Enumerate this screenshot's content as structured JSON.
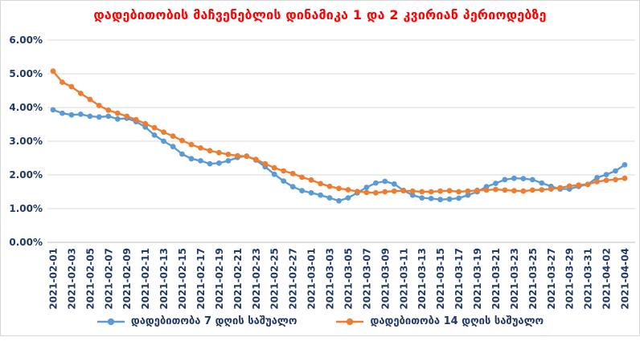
{
  "chart_data": {
    "type": "line",
    "title": "დადებითობის მაჩვენებლის დინამიკა 1 და 2 კვირიან პერიოდებზე",
    "title_color": "#FF0000",
    "axis_text_color": "#1F3864",
    "gridline_color": "#D9D9D9",
    "grid": true,
    "legend_position": "bottom",
    "ylim": [
      0,
      6
    ],
    "y_tick_labels": [
      "0.00%",
      "1.00%",
      "2.00%",
      "3.00%",
      "4.00%",
      "5.00%",
      "6.00%"
    ],
    "x_tick_step": 2,
    "x": [
      "2021-02-01",
      "2021-02-02",
      "2021-02-03",
      "2021-02-04",
      "2021-02-05",
      "2021-02-06",
      "2021-02-07",
      "2021-02-08",
      "2021-02-09",
      "2021-02-10",
      "2021-02-11",
      "2021-02-12",
      "2021-02-13",
      "2021-02-14",
      "2021-02-15",
      "2021-02-16",
      "2021-02-17",
      "2021-02-18",
      "2021-02-19",
      "2021-02-20",
      "2021-02-21",
      "2021-02-22",
      "2021-02-23",
      "2021-02-24",
      "2021-02-25",
      "2021-02-26",
      "2021-02-27",
      "2021-02-28",
      "2021-03-01",
      "2021-03-02",
      "2021-03-03",
      "2021-03-04",
      "2021-03-05",
      "2021-03-06",
      "2021-03-07",
      "2021-03-08",
      "2021-03-09",
      "2021-03-10",
      "2021-03-11",
      "2021-03-12",
      "2021-03-13",
      "2021-03-14",
      "2021-03-15",
      "2021-03-16",
      "2021-03-17",
      "2021-03-18",
      "2021-03-19",
      "2021-03-20",
      "2021-03-21",
      "2021-03-22",
      "2021-03-23",
      "2021-03-24",
      "2021-03-25",
      "2021-03-26",
      "2021-03-27",
      "2021-03-28",
      "2021-03-29",
      "2021-03-30",
      "2021-03-31",
      "2021-04-01",
      "2021-04-02",
      "2021-04-03",
      "2021-04-04"
    ],
    "series": [
      {
        "name": "დადებითობა 7 დღის საშუალო",
        "color": "#5B9BD5",
        "values": [
          3.93,
          3.83,
          3.78,
          3.8,
          3.74,
          3.72,
          3.74,
          3.66,
          3.68,
          3.58,
          3.42,
          3.18,
          3.0,
          2.84,
          2.62,
          2.48,
          2.42,
          2.33,
          2.35,
          2.42,
          2.52,
          2.56,
          2.44,
          2.24,
          2.02,
          1.82,
          1.65,
          1.53,
          1.47,
          1.4,
          1.32,
          1.23,
          1.32,
          1.47,
          1.63,
          1.76,
          1.81,
          1.73,
          1.54,
          1.4,
          1.32,
          1.3,
          1.27,
          1.28,
          1.31,
          1.4,
          1.5,
          1.65,
          1.75,
          1.86,
          1.9,
          1.89,
          1.86,
          1.76,
          1.66,
          1.58,
          1.58,
          1.66,
          1.72,
          1.92,
          2.01,
          2.12,
          2.3
        ]
      },
      {
        "name": "დადებითობა 14 დღის საშუალო",
        "color": "#ED7D31",
        "values": [
          5.08,
          4.75,
          4.62,
          4.42,
          4.24,
          4.06,
          3.92,
          3.83,
          3.74,
          3.64,
          3.52,
          3.4,
          3.27,
          3.15,
          3.02,
          2.9,
          2.8,
          2.72,
          2.66,
          2.61,
          2.57,
          2.55,
          2.46,
          2.33,
          2.21,
          2.12,
          2.04,
          1.93,
          1.85,
          1.74,
          1.66,
          1.6,
          1.56,
          1.51,
          1.48,
          1.47,
          1.5,
          1.52,
          1.53,
          1.52,
          1.5,
          1.5,
          1.52,
          1.53,
          1.5,
          1.52,
          1.54,
          1.55,
          1.57,
          1.55,
          1.53,
          1.52,
          1.55,
          1.56,
          1.58,
          1.62,
          1.67,
          1.7,
          1.72,
          1.8,
          1.84,
          1.86,
          1.9
        ]
      }
    ]
  }
}
